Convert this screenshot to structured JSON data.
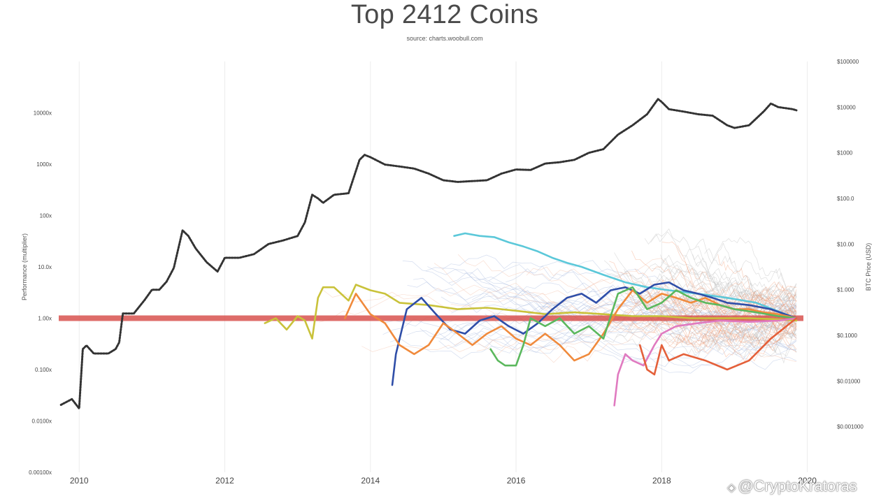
{
  "chart_data": {
    "type": "line",
    "title": "Top 2412 Coins",
    "subtitle": "source: charts.woobull.com",
    "ylabel_left": "Performance (multiplier)",
    "ylabel_right": "BTC Price (USD)",
    "y_scale": "log",
    "ylim_left": [
      0.001,
      100000
    ],
    "ylim_right": [
      0.0001,
      100000
    ],
    "xlim": [
      2009.7,
      2020.1
    ],
    "x_ticks": [
      "2010",
      "2012",
      "2014",
      "2016",
      "2018",
      "2020"
    ],
    "x_tick_values": [
      2010,
      2012,
      2014,
      2016,
      2018,
      2020
    ],
    "left_ticks": [
      "0.00100x",
      "0.0100x",
      "0.100x",
      "1.00x",
      "10.0x",
      "100x",
      "1000x",
      "10000x"
    ],
    "left_tick_values": [
      0.001,
      0.01,
      0.1,
      1,
      10,
      100,
      1000,
      10000
    ],
    "right_ticks": [
      "$0.001000",
      "$0.01000",
      "$0.1000",
      "$1.000",
      "$10.00",
      "$100.0",
      "$1000",
      "$10000",
      "$100000"
    ],
    "right_tick_values": [
      0.001,
      0.01,
      0.1,
      1,
      10,
      100,
      1000,
      10000,
      100000
    ],
    "baseline": {
      "value": 1,
      "color": "#d9534f"
    },
    "grid": true,
    "series": [
      {
        "name": "BTC Price",
        "axis": "right",
        "style": "dotted",
        "color": "#333333",
        "x": [
          2009.75,
          2009.9,
          2010.0,
          2010.05,
          2010.1,
          2010.2,
          2010.4,
          2010.5,
          2010.55,
          2010.6,
          2010.75,
          2010.9,
          2011.0,
          2011.1,
          2011.2,
          2011.3,
          2011.42,
          2011.5,
          2011.6,
          2011.75,
          2011.9,
          2012.0,
          2012.2,
          2012.4,
          2012.6,
          2012.8,
          2013.0,
          2013.1,
          2013.2,
          2013.28,
          2013.35,
          2013.5,
          2013.7,
          2013.85,
          2013.92,
          2014.0,
          2014.2,
          2014.4,
          2014.6,
          2014.8,
          2015.0,
          2015.2,
          2015.4,
          2015.6,
          2015.8,
          2016.0,
          2016.2,
          2016.4,
          2016.6,
          2016.8,
          2017.0,
          2017.2,
          2017.4,
          2017.6,
          2017.8,
          2017.95,
          2018.0,
          2018.1,
          2018.3,
          2018.5,
          2018.7,
          2018.9,
          2019.0,
          2019.2,
          2019.4,
          2019.5,
          2019.6,
          2019.8,
          2019.85
        ],
        "values": [
          0.003,
          0.004,
          0.0025,
          0.05,
          0.06,
          0.04,
          0.04,
          0.05,
          0.07,
          0.3,
          0.3,
          0.6,
          1.0,
          1.0,
          1.5,
          3,
          20,
          15,
          8,
          4,
          2.5,
          5,
          5,
          6,
          10,
          12,
          15,
          30,
          120,
          100,
          80,
          120,
          130,
          700,
          900,
          800,
          550,
          500,
          450,
          350,
          250,
          230,
          240,
          250,
          350,
          430,
          420,
          580,
          620,
          700,
          1000,
          1200,
          2500,
          4000,
          7000,
          15000,
          13000,
          9000,
          8000,
          7000,
          6500,
          4000,
          3500,
          4000,
          8000,
          12000,
          10000,
          9000,
          8500
        ]
      },
      {
        "name": "Yellow",
        "axis": "left",
        "color": "#c9c23a",
        "x": [
          2012.55,
          2012.7,
          2012.85,
          2013.0,
          2013.1,
          2013.2,
          2013.28,
          2013.35,
          2013.5,
          2013.7,
          2013.8,
          2014.0,
          2014.2,
          2014.4,
          2014.8,
          2015.2,
          2015.6,
          2016.0,
          2016.4,
          2016.8,
          2017.2,
          2017.6,
          2018.0,
          2018.4,
          2018.8,
          2019.2,
          2019.6,
          2019.85
        ],
        "values": [
          0.8,
          1.0,
          0.6,
          1.1,
          0.9,
          0.4,
          2.5,
          4,
          4,
          2.2,
          4.5,
          3.5,
          3.0,
          2.0,
          1.8,
          1.5,
          1.6,
          1.4,
          1.2,
          1.3,
          1.2,
          1.1,
          1.1,
          1.0,
          1.0,
          1.0,
          0.95,
          0.9
        ]
      },
      {
        "name": "Cyan",
        "axis": "left",
        "color": "#5bc8d9",
        "x": [
          2015.15,
          2015.3,
          2015.5,
          2015.7,
          2015.9,
          2016.1,
          2016.3,
          2016.5,
          2016.7,
          2016.9,
          2017.2,
          2017.5,
          2017.8,
          2018.1,
          2018.5,
          2018.9,
          2019.3,
          2019.7,
          2019.85
        ],
        "values": [
          40,
          45,
          40,
          38,
          30,
          25,
          20,
          15,
          12,
          10,
          7,
          5,
          4,
          3.5,
          3,
          2.5,
          2,
          1.2,
          1.0
        ]
      },
      {
        "name": "Blue",
        "axis": "left",
        "color": "#2f4ea8",
        "x": [
          2014.3,
          2014.35,
          2014.5,
          2014.7,
          2014.9,
          2015.1,
          2015.3,
          2015.5,
          2015.7,
          2015.9,
          2016.1,
          2016.3,
          2016.5,
          2016.7,
          2016.9,
          2017.1,
          2017.3,
          2017.5,
          2017.7,
          2017.9,
          2018.1,
          2018.3,
          2018.5,
          2018.7,
          2018.9,
          2019.2,
          2019.5,
          2019.85
        ],
        "values": [
          0.05,
          0.2,
          1.5,
          2.5,
          1.2,
          0.6,
          0.5,
          0.9,
          1.1,
          0.7,
          0.5,
          0.8,
          1.5,
          2.5,
          3.0,
          2.0,
          3.5,
          4.0,
          3.0,
          4.5,
          5.0,
          3.5,
          3.0,
          2.5,
          2.0,
          1.8,
          1.5,
          1.0
        ]
      },
      {
        "name": "Orange",
        "axis": "left",
        "color": "#f08a3c",
        "x": [
          2013.65,
          2013.8,
          2014.0,
          2014.2,
          2014.4,
          2014.6,
          2014.8,
          2015.0,
          2015.2,
          2015.4,
          2015.6,
          2015.8,
          2016.0,
          2016.2,
          2016.4,
          2016.6,
          2016.8,
          2017.0,
          2017.2,
          2017.4,
          2017.6,
          2017.8,
          2018.0,
          2018.2,
          2018.4,
          2018.6,
          2018.8,
          2019.0,
          2019.2,
          2019.4,
          2019.6,
          2019.85
        ],
        "values": [
          1.0,
          3.0,
          1.2,
          0.8,
          0.3,
          0.2,
          0.3,
          0.8,
          0.5,
          0.3,
          0.5,
          0.7,
          0.4,
          0.3,
          0.5,
          0.3,
          0.15,
          0.2,
          0.5,
          1.5,
          3.5,
          2.0,
          3.0,
          2.5,
          2.0,
          2.5,
          1.8,
          1.5,
          1.5,
          1.3,
          1.2,
          1.0
        ]
      },
      {
        "name": "Green",
        "axis": "left",
        "color": "#5bb85d",
        "x": [
          2015.65,
          2015.75,
          2015.85,
          2016.0,
          2016.1,
          2016.2,
          2016.4,
          2016.6,
          2016.8,
          2017.0,
          2017.2,
          2017.4,
          2017.6,
          2017.8,
          2018.0,
          2018.2,
          2018.4,
          2018.6,
          2018.8,
          2019.0,
          2019.3,
          2019.6,
          2019.85
        ],
        "values": [
          0.25,
          0.15,
          0.12,
          0.12,
          0.3,
          1.0,
          0.7,
          1.0,
          0.5,
          0.7,
          0.4,
          3.0,
          4.0,
          1.5,
          2.0,
          3.5,
          2.5,
          2.0,
          1.8,
          1.5,
          1.3,
          1.1,
          1.0
        ]
      },
      {
        "name": "Pink",
        "axis": "left",
        "color": "#e07ac0",
        "x": [
          2017.35,
          2017.4,
          2017.5,
          2017.6,
          2017.75,
          2017.9,
          2018.0,
          2018.2,
          2018.5,
          2018.8,
          2019.2,
          2019.6,
          2019.85
        ],
        "values": [
          0.02,
          0.08,
          0.2,
          0.15,
          0.12,
          0.3,
          0.5,
          0.7,
          0.8,
          0.9,
          0.85,
          0.9,
          1.0
        ]
      },
      {
        "name": "Red",
        "axis": "left",
        "color": "#e4603a",
        "x": [
          2017.7,
          2017.8,
          2017.9,
          2018.0,
          2018.1,
          2018.3,
          2018.6,
          2018.9,
          2019.2,
          2019.5,
          2019.85
        ],
        "values": [
          0.3,
          0.1,
          0.08,
          0.3,
          0.15,
          0.2,
          0.15,
          0.1,
          0.15,
          0.4,
          1.0
        ]
      }
    ]
  },
  "watermark": {
    "text": "@CryptoKratoras",
    "icon": "binance-diamond-icon"
  }
}
